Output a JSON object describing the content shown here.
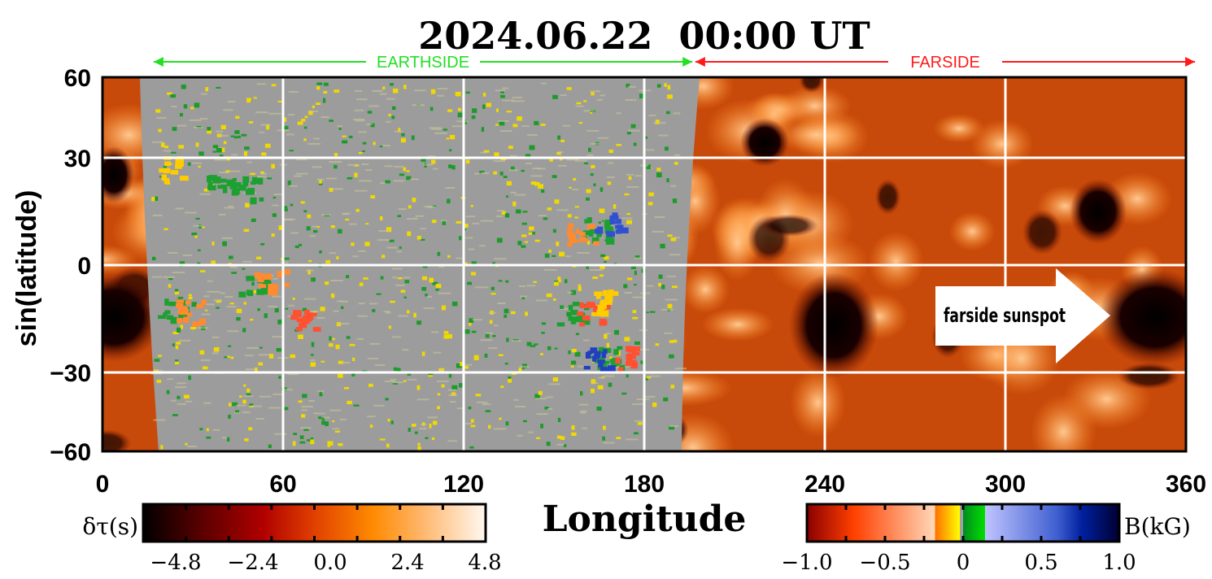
{
  "chart_data": {
    "type": "heatmap",
    "title": "2024.06.22  00:00 UT",
    "xlabel": "Longitude",
    "ylabel": "sin(latitude)",
    "xlim": [
      0,
      360
    ],
    "ylim": [
      -60,
      60
    ],
    "x_ticks": [
      "0",
      "60",
      "120",
      "180",
      "240",
      "300",
      "360"
    ],
    "x_tick_values": [
      0,
      60,
      120,
      180,
      240,
      300,
      360
    ],
    "y_ticks": [
      "60",
      "30",
      "0",
      "−30",
      "−60"
    ],
    "y_tick_values": [
      60,
      30,
      0,
      -30,
      -60
    ],
    "grid": true,
    "regions": [
      {
        "label": "EARTHSIDE",
        "from": 17,
        "to": 196,
        "color": "#22e022"
      },
      {
        "label": "FARSIDE",
        "from": 197,
        "to": 363,
        "color": "#ff1a1a"
      }
    ],
    "annotation": {
      "text": "farside sunspot",
      "lon": 335,
      "lat": -15
    },
    "colorbars": [
      {
        "label": "δτ(s)",
        "ticks": [
          "−4.8",
          "−2.4",
          "0.0",
          "2.4",
          "4.8"
        ],
        "range": [
          -4.8,
          4.8
        ],
        "colors": [
          "#000000",
          "#5a0000",
          "#b00000",
          "#e04000",
          "#ff8a00",
          "#ffb870",
          "#fff8f0"
        ]
      },
      {
        "label": "B(kG)",
        "ticks": [
          "−1.0",
          "−0.5",
          "0",
          "0.5",
          "1.0"
        ],
        "range": [
          -1.0,
          1.0
        ]
      }
    ]
  }
}
